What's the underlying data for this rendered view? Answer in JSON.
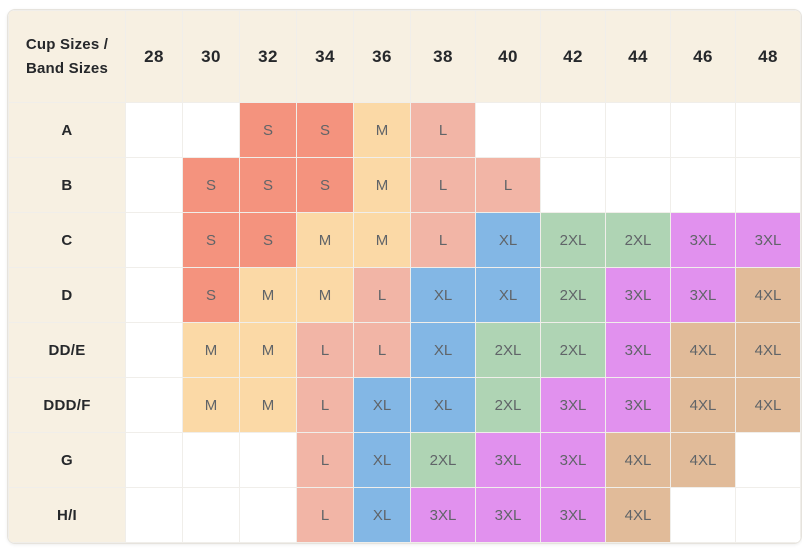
{
  "colors": {
    "sizes": {
      "S": "#f4937e",
      "M": "#fbd9a6",
      "L": "#f2b5a6",
      "XL": "#83b7e5",
      "2XL": "#afd4b4",
      "3XL": "#e191ee",
      "4XL": "#e1bb99"
    },
    "ui": {
      "header_bg": "#f7f0e2",
      "header_text": "#26282b",
      "cell_text": "#606468",
      "grid_line": "#f0eeea",
      "outer_border": "#e6e3dd",
      "empty_bg": "#ffffff"
    }
  },
  "chart_data": {
    "type": "table",
    "title": "Cup Sizes / Band Sizes",
    "corner_label": "Cup Sizes / Band Sizes",
    "columns": [
      "28",
      "30",
      "32",
      "34",
      "36",
      "38",
      "40",
      "42",
      "44",
      "46",
      "48"
    ],
    "rows": [
      {
        "cup_size": "A",
        "cells": [
          "",
          "",
          "S",
          "S",
          "M",
          "L",
          "",
          "",
          "",
          "",
          ""
        ]
      },
      {
        "cup_size": "B",
        "cells": [
          "",
          "S",
          "S",
          "S",
          "M",
          "L",
          "L",
          "",
          "",
          "",
          ""
        ]
      },
      {
        "cup_size": "C",
        "cells": [
          "",
          "S",
          "S",
          "M",
          "M",
          "L",
          "XL",
          "2XL",
          "2XL",
          "3XL",
          "3XL"
        ]
      },
      {
        "cup_size": "D",
        "cells": [
          "",
          "S",
          "M",
          "M",
          "L",
          "XL",
          "XL",
          "2XL",
          "3XL",
          "3XL",
          "4XL"
        ]
      },
      {
        "cup_size": "DD/E",
        "cells": [
          "",
          "M",
          "M",
          "L",
          "L",
          "XL",
          "2XL",
          "2XL",
          "3XL",
          "4XL",
          "4XL"
        ]
      },
      {
        "cup_size": "DDD/F",
        "cells": [
          "",
          "M",
          "M",
          "L",
          "XL",
          "XL",
          "2XL",
          "3XL",
          "3XL",
          "4XL",
          "4XL"
        ]
      },
      {
        "cup_size": "G",
        "cells": [
          "",
          "",
          "",
          "L",
          "XL",
          "2XL",
          "3XL",
          "3XL",
          "4XL",
          "4XL",
          ""
        ]
      },
      {
        "cup_size": "H/I",
        "cells": [
          "",
          "",
          "",
          "L",
          "XL",
          "3XL",
          "3XL",
          "3XL",
          "4XL",
          "",
          ""
        ]
      }
    ],
    "legend_position": "none",
    "grid": true
  }
}
